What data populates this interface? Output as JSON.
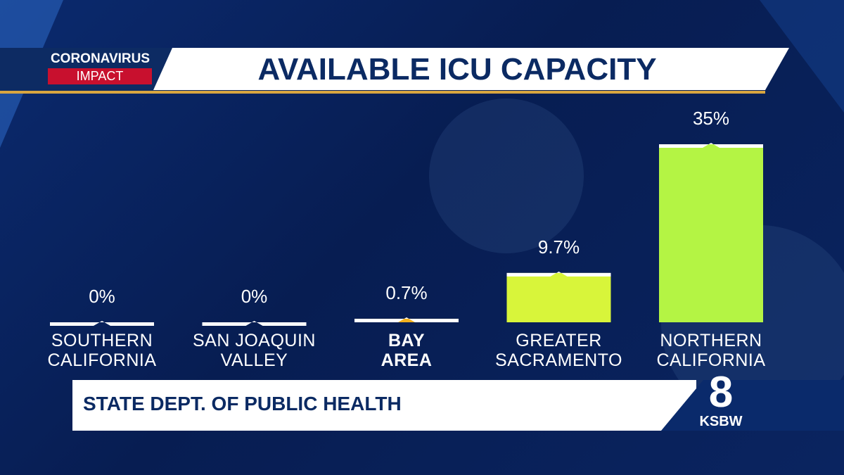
{
  "header": {
    "tag_top": "CORONAVIRUS",
    "tag_bottom": "IMPACT"
  },
  "chart_data": {
    "type": "bar",
    "title": "AVAILABLE ICU CAPACITY",
    "categories": [
      "SOUTHERN\nCALIFORNIA",
      "SAN JOAQUIN\nVALLEY",
      "BAY\nAREA",
      "GREATER\nSACRAMENTO",
      "NORTHERN\nCALIFORNIA"
    ],
    "values": [
      0,
      0,
      0.7,
      9.7,
      35
    ],
    "value_labels": [
      "0%",
      "0%",
      "0.7%",
      "9.7%",
      "35%"
    ],
    "colors": [
      "#ffffff",
      "#ffffff",
      "#f2b01e",
      "#d8f53a",
      "#b4f444"
    ]
  },
  "footer": {
    "source": "STATE DEPT. OF PUBLIC HEALTH",
    "logo_number": "8",
    "logo_name": "KSBW"
  }
}
